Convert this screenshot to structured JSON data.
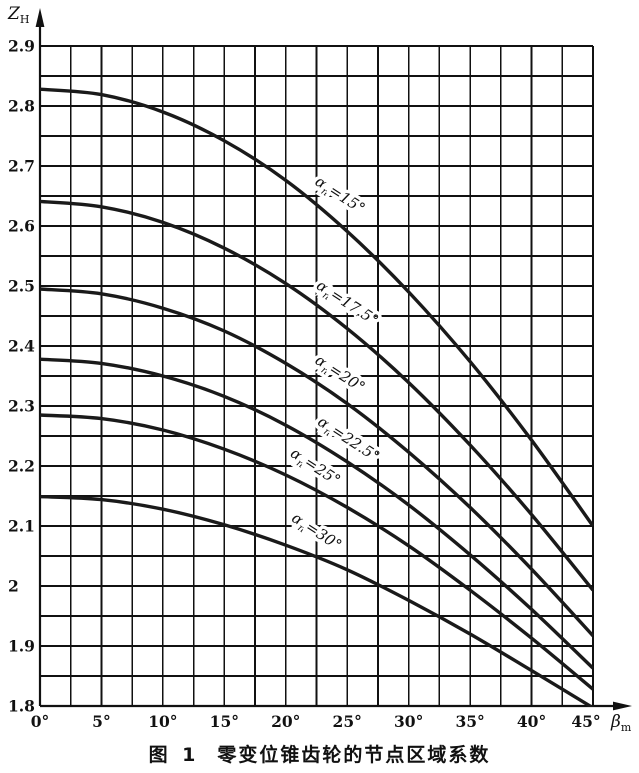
{
  "colors": {
    "ink": "#111111",
    "curve": "#1a1a1a",
    "background": "#ffffff"
  },
  "chart_data": {
    "type": "line",
    "caption": {
      "figure": "图 1",
      "title": "零变位锥齿轮的节点区域系数"
    },
    "ylabel": {
      "main": "Z",
      "sub": "H"
    },
    "xlabel": {
      "main": "β",
      "sub": "m"
    },
    "xlim": [
      0,
      45
    ],
    "ylim": [
      1.8,
      2.9
    ],
    "grid": true,
    "grid_step_x_deg": 2.5,
    "grid_step_y": 0.05,
    "x_tick_labels": [
      "0°",
      "5°",
      "10°",
      "15°",
      "20°",
      "25°",
      "30°",
      "35°",
      "40°",
      "45°"
    ],
    "y_tick_labels": [
      "2.9",
      "2.8",
      "2.7",
      "2.6",
      "2.5",
      "2.4",
      "2.3",
      "2.2",
      "2.1",
      "2",
      "1.9",
      "1.8"
    ],
    "x_deg": [
      0,
      5,
      10,
      15,
      20,
      25,
      30,
      35,
      40,
      45
    ],
    "label_rotation_deg": 33,
    "series": [
      {
        "name": "αₙ=15°",
        "sym": "α",
        "sub": "n",
        "val": "15°",
        "label_at": [
          24.2,
          2.645
        ],
        "values": [
          2.828,
          2.819,
          2.79,
          2.742,
          2.676,
          2.591,
          2.49,
          2.374,
          2.243,
          2.1
        ]
      },
      {
        "name": "αₙ=17.5°",
        "sym": "α",
        "sub": "n",
        "val": "17.5°",
        "label_at": [
          24.8,
          2.465
        ],
        "values": [
          2.641,
          2.632,
          2.606,
          2.563,
          2.504,
          2.429,
          2.339,
          2.235,
          2.119,
          1.993
        ]
      },
      {
        "name": "αₙ=20°",
        "sym": "α",
        "sub": "n",
        "val": "20°",
        "label_at": [
          24.2,
          2.347
        ],
        "values": [
          2.495,
          2.487,
          2.463,
          2.425,
          2.371,
          2.304,
          2.223,
          2.131,
          2.028,
          1.917
        ]
      },
      {
        "name": "αₙ=22.5°",
        "sym": "α",
        "sub": "n",
        "val": "22.5°",
        "label_at": [
          24.9,
          2.238
        ],
        "values": [
          2.378,
          2.371,
          2.35,
          2.316,
          2.268,
          2.207,
          2.135,
          2.052,
          1.961,
          1.863
        ]
      },
      {
        "name": "αₙ=25°",
        "sym": "α",
        "sub": "n",
        "val": "25°",
        "label_at": [
          22.2,
          2.192
        ],
        "values": [
          2.285,
          2.279,
          2.26,
          2.228,
          2.185,
          2.131,
          2.067,
          1.993,
          1.913,
          1.828
        ]
      },
      {
        "name": "αₙ=30°",
        "sym": "α",
        "sub": "n",
        "val": "30°",
        "label_at": [
          22.3,
          2.084
        ],
        "values": [
          2.149,
          2.144,
          2.128,
          2.102,
          2.068,
          2.027,
          1.976,
          1.92,
          1.859,
          1.797
        ]
      }
    ]
  }
}
